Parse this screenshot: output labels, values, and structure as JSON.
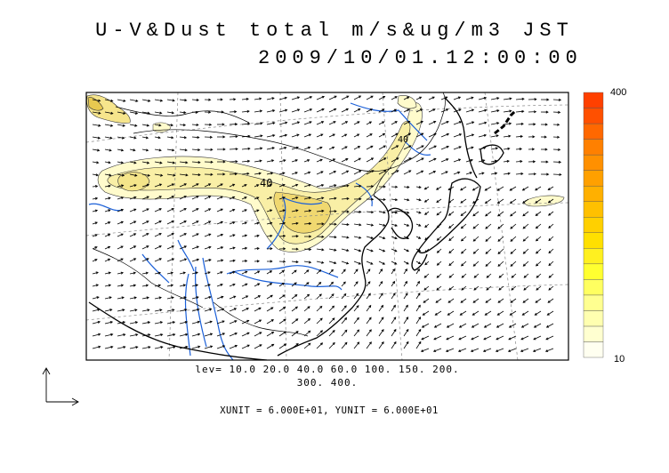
{
  "title": {
    "line1": "U-V&Dust total m/s&ug/m3 JST",
    "line2": "2009/10/01.12:00:00"
  },
  "colorbar": {
    "max_label": "400",
    "min_label": "10",
    "colors": [
      "#fffff0",
      "#ffffd0",
      "#ffffb0",
      "#ffff90",
      "#ffff60",
      "#ffff30",
      "#fff020",
      "#ffe000",
      "#ffd000",
      "#ffc000",
      "#ffb000",
      "#ffa000",
      "#ff9000",
      "#ff8000",
      "#ff6800",
      "#ff5000",
      "#ff4000"
    ]
  },
  "levels_line1": "lev= 10.0 20.0 40.0 60.0 100. 150. 200.",
  "levels_line2": "300. 400.",
  "contour_label": "40",
  "contour_label_2": "40",
  "units_text": "XUNIT = 6.000E+01, YUNIT = 6.000E+01",
  "colors": {
    "land_border": "#000000",
    "river": "#1a5fd8",
    "dust_light": "#fffbcc",
    "dust_mid": "#f7ec9a",
    "dust_high": "#efd466"
  }
}
